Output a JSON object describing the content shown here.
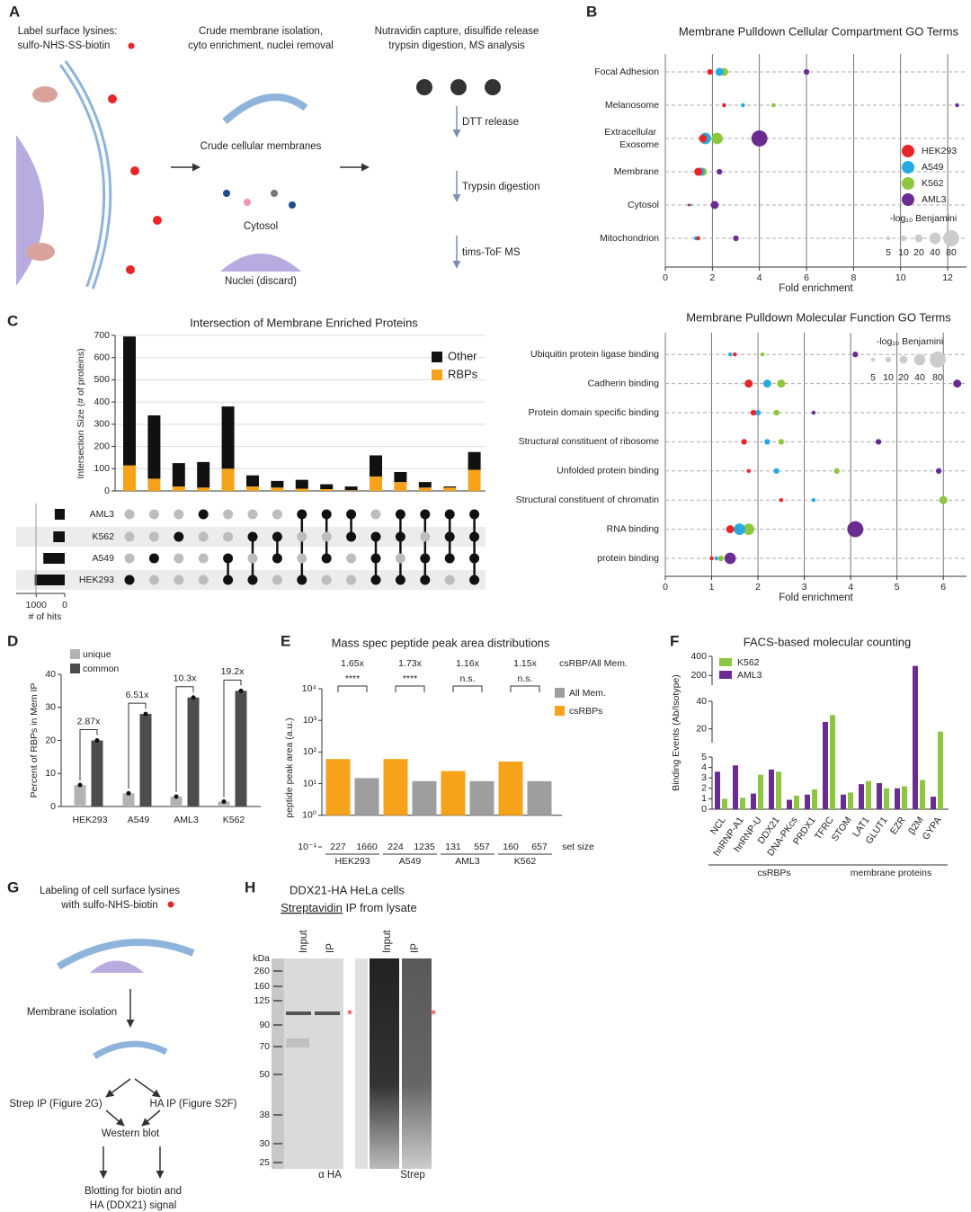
{
  "panel_labels": [
    "A",
    "B",
    "C",
    "D",
    "E",
    "F",
    "G",
    "H"
  ],
  "panel_a": {
    "steps": [
      [
        "Label surface lysines:",
        "sulfo-NHS-SS-biotin"
      ],
      [
        "Crude membrane isolation,",
        "cyto enrichment, nuclei removal"
      ],
      [
        "Nutravidin capture, disulfide release",
        "trypsin digestion, MS analysis"
      ]
    ],
    "labels": [
      "Crude cellular membranes",
      "Cytosol",
      "Nuclei (discard)",
      "DTT release",
      "Trypsin digestion",
      "tims-ToF MS"
    ]
  },
  "chart_data": [
    {
      "type": "bubble",
      "title": "Membrane Pulldown Cellular Compartment GO Terms",
      "x_label": "Fold enrichment",
      "categories": [
        "Focal Adhesion",
        "Melanosome",
        "Extracellular Exosome",
        "Membrane",
        "Cytosol",
        "Mitochondrion"
      ],
      "series": [
        {
          "name": "HEK293",
          "color": "#e8262a",
          "values": [
            1.9,
            2.5,
            1.6,
            1.4,
            1.0,
            1.4
          ],
          "sizes": [
            10,
            5,
            20,
            20,
            2,
            5
          ]
        },
        {
          "name": "A549",
          "color": "#27aae1",
          "values": [
            2.3,
            3.3,
            1.7,
            1.5,
            1.1,
            1.3
          ],
          "sizes": [
            20,
            5,
            40,
            20,
            2,
            5
          ]
        },
        {
          "name": "K562",
          "color": "#8dc63f",
          "values": [
            2.5,
            4.6,
            2.2,
            1.6,
            1.0,
            1.4
          ],
          "sizes": [
            20,
            5,
            40,
            20,
            2,
            5
          ]
        },
        {
          "name": "AML3",
          "color": "#6a2c91",
          "values": [
            6.0,
            12.4,
            4.0,
            2.3,
            2.1,
            3.0
          ],
          "sizes": [
            10,
            5,
            80,
            10,
            20,
            10
          ]
        }
      ],
      "xlim": [
        0,
        12.8
      ],
      "xticks": [
        0,
        2,
        4,
        6,
        8,
        10,
        12
      ],
      "grid": true,
      "size_legend": {
        "title": "-log₁₀ Benjamini",
        "values": [
          5,
          10,
          20,
          40,
          80
        ]
      }
    },
    {
      "type": "bubble",
      "title": "Membrane Pulldown Molecular Function GO Terms",
      "x_label": "Fold enrichment",
      "categories": [
        "Ubiquitin protein ligase binding",
        "Cadherin binding",
        "Protein domain specific binding",
        "Structural constituent of ribosome",
        "Unfolded protein binding",
        "Structural constituent of chromatin",
        "RNA binding",
        "protein binding"
      ],
      "series": [
        {
          "color": "#e8262a",
          "values": [
            1.5,
            1.8,
            1.9,
            1.7,
            1.8,
            2.5,
            1.4,
            1.0
          ],
          "sizes": [
            5,
            20,
            10,
            10,
            5,
            5,
            20,
            5
          ]
        },
        {
          "color": "#27aae1",
          "values": [
            1.4,
            2.2,
            2.0,
            2.2,
            2.4,
            3.2,
            1.6,
            1.1
          ],
          "sizes": [
            5,
            20,
            10,
            10,
            10,
            5,
            40,
            5
          ]
        },
        {
          "color": "#8dc63f",
          "values": [
            2.1,
            2.5,
            2.4,
            2.5,
            3.7,
            6.0,
            1.8,
            1.2
          ],
          "sizes": [
            5,
            20,
            10,
            10,
            10,
            20,
            40,
            10
          ]
        },
        {
          "color": "#6a2c91",
          "values": [
            4.1,
            6.3,
            3.2,
            4.6,
            5.9,
            null,
            4.1,
            1.4
          ],
          "sizes": [
            10,
            20,
            5,
            10,
            10,
            null,
            80,
            40
          ]
        }
      ],
      "xlim": [
        0,
        6.5
      ],
      "xticks": [
        0,
        1,
        2,
        3,
        4,
        5,
        6
      ],
      "grid": true,
      "size_legend": {
        "title": "-log₁₀ Benjamini",
        "values": [
          5,
          10,
          20,
          40,
          80
        ]
      }
    },
    {
      "type": "upset",
      "title": "Intersection of Membrane Enriched Proteins",
      "y_label": "Intersection Size (# of proteins)",
      "series": [
        {
          "name": "Other",
          "color": "#111111",
          "values": [
            580,
            285,
            105,
            115,
            280,
            50,
            30,
            40,
            22,
            17,
            95,
            45,
            25,
            5,
            80
          ]
        },
        {
          "name": "RBPs",
          "color": "#f7a21b",
          "values": [
            115,
            55,
            20,
            15,
            100,
            20,
            15,
            10,
            8,
            3,
            65,
            40,
            15,
            15,
            95
          ]
        }
      ],
      "ylim": [
        0,
        700
      ],
      "yticks": [
        0,
        100,
        200,
        300,
        400,
        500,
        600,
        700
      ],
      "sets": [
        "AML3",
        "K562",
        "A549",
        "HEK293"
      ],
      "membership": [
        [
          0,
          0,
          0,
          1
        ],
        [
          0,
          0,
          1,
          0
        ],
        [
          0,
          1,
          0,
          0
        ],
        [
          1,
          0,
          0,
          0
        ],
        [
          0,
          0,
          1,
          1
        ],
        [
          0,
          1,
          0,
          1
        ],
        [
          0,
          1,
          1,
          0
        ],
        [
          1,
          0,
          0,
          1
        ],
        [
          1,
          0,
          1,
          0
        ],
        [
          1,
          1,
          0,
          0
        ],
        [
          0,
          1,
          1,
          1
        ],
        [
          1,
          1,
          0,
          1
        ],
        [
          1,
          0,
          1,
          1
        ],
        [
          1,
          1,
          1,
          0
        ],
        [
          1,
          1,
          1,
          1
        ]
      ],
      "set_sizes": [
        350,
        400,
        750,
        1050
      ],
      "set_xlim": [
        0,
        1700
      ],
      "set_xticks": [
        1000,
        0
      ],
      "set_x_label": "# of hits"
    },
    {
      "type": "bar",
      "y_label": "Percent of RBPs in Mem IP",
      "categories": [
        "HEK293",
        "A549",
        "AML3",
        "K562"
      ],
      "series": [
        {
          "name": "unique",
          "color": "#b3b3b3",
          "values": [
            6.5,
            4,
            3,
            1.5
          ]
        },
        {
          "name": "common",
          "color": "#4d4d4d",
          "values": [
            20,
            28,
            33,
            35
          ]
        }
      ],
      "ylim": [
        0,
        40
      ],
      "yticks": [
        0,
        10,
        20,
        30,
        40
      ],
      "annotations": [
        "2.87x",
        "6.51x",
        "10.3x",
        "19.2x"
      ]
    },
    {
      "type": "bar",
      "title": "Mass spec peptide peak area distributions",
      "y_label": "peptide peak area (a.u.)",
      "log_scale": true,
      "categories": [
        "HEK293",
        "A549",
        "AML3",
        "K562"
      ],
      "series": [
        {
          "name": "All Mem.",
          "color": "#9e9e9e",
          "values": [
            15,
            12,
            12,
            12
          ],
          "set_sizes": [
            1660,
            1235,
            557,
            657
          ]
        },
        {
          "name": "csRBPs",
          "color": "#f7a21b",
          "values": [
            60,
            60,
            25,
            50
          ],
          "set_sizes": [
            227,
            224,
            131,
            160
          ]
        }
      ],
      "ylim": [
        0.1,
        10000
      ],
      "yticks": [
        {
          "value": 0.1,
          "label": "10⁻¹"
        },
        {
          "value": 1,
          "label": "10⁰"
        },
        {
          "value": 10,
          "label": "10¹"
        },
        {
          "value": 100,
          "label": "10²"
        },
        {
          "value": 1000,
          "label": "10³"
        },
        {
          "value": 10000,
          "label": "10⁴"
        }
      ],
      "ratio_label": "csRBP/All Mem.",
      "ratios": [
        "1.65x",
        "1.73x",
        "1.16x",
        "1.15x"
      ],
      "significance": [
        "****",
        "****",
        "n.s.",
        "n.s."
      ],
      "set_size_label": "set size"
    },
    {
      "type": "bar",
      "title": "FACS-based molecular counting",
      "y_label": "Binding Events (Ab/Isotype)",
      "categories": [
        "NCL",
        "hnRNP-A1",
        "hnRNP-U",
        "DDX21",
        "DNA-PKcs",
        "PRDX1",
        "TFRC",
        "STOM",
        "LAT1",
        "GLUT1",
        "EZR",
        "β2M",
        "GYPA"
      ],
      "series": [
        {
          "name": "K562",
          "color": "#8dc63f",
          "values": [
            1.0,
            1.1,
            3.3,
            3.6,
            1.3,
            1.9,
            30,
            1.6,
            2.7,
            2.0,
            2.2,
            2.8,
            18
          ]
        },
        {
          "name": "AML3",
          "color": "#6a2c91",
          "values": [
            3.6,
            4.2,
            1.5,
            3.8,
            0.9,
            1.4,
            25,
            1.4,
            2.4,
            2.5,
            2.0,
            300,
            1.2
          ]
        }
      ],
      "y_segments": [
        [
          0,
          5
        ],
        [
          10,
          40
        ],
        [
          100,
          400
        ]
      ],
      "yticks": [
        0,
        1,
        2,
        3,
        4,
        5,
        20,
        40,
        200,
        400
      ],
      "groups": [
        {
          "label": "csRBPs",
          "count": 7
        },
        {
          "label": "membrane proteins",
          "count": 6
        }
      ]
    }
  ],
  "panel_g": {
    "title": [
      "Labeling of cell surface lysines",
      "with sulfo-NHS-biotin"
    ],
    "steps": [
      "Membrane isolation",
      "Strep IP (Figure 2G)",
      "HA IP (Figure S2F)",
      "Western blot"
    ],
    "result": [
      "Blotting for biotin and",
      "HA (DDX21) signal"
    ]
  },
  "panel_h": {
    "title": "DDX21-HA HeLa cells",
    "subtitle": [
      "Streptavidin",
      " IP from lysate"
    ],
    "marker_unit": "kDa",
    "markers": [
      260,
      160,
      125,
      90,
      70,
      50,
      38,
      30,
      25
    ],
    "lanes": [
      "Input",
      "IP",
      "Input",
      "IP"
    ],
    "blots": [
      "α HA",
      "Strep"
    ],
    "asterisk": "*"
  }
}
